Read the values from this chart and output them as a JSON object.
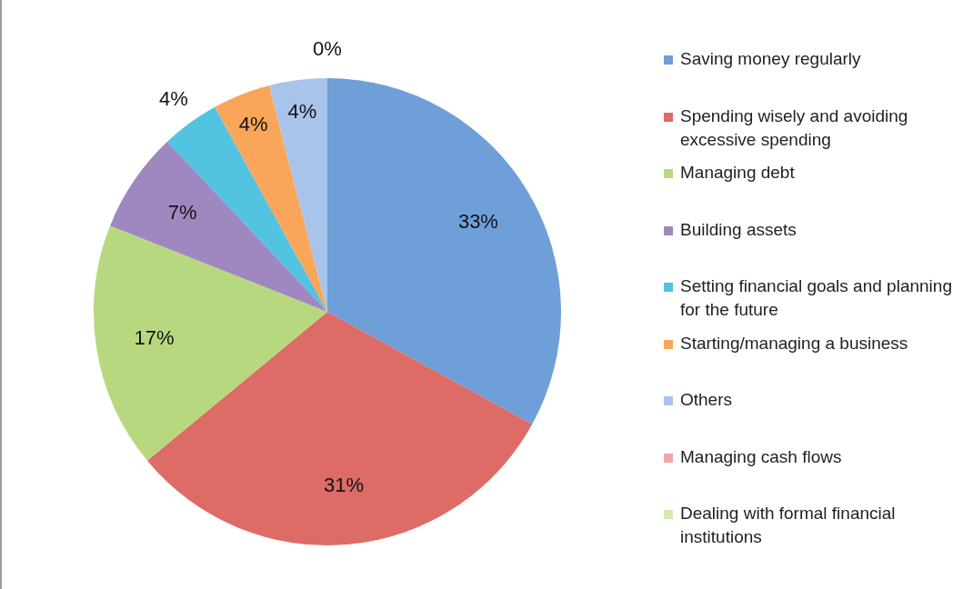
{
  "chart_data": {
    "type": "pie",
    "categories": [
      "Saving money regularly",
      "Spending wisely and avoiding excessive spending",
      "Managing debt",
      "Building assets",
      "Setting financial goals and planning for the future",
      "Starting/managing a business",
      "Others",
      "Managing cash flows",
      "Dealing with formal financial institutions"
    ],
    "values": [
      33,
      31,
      17,
      7,
      4,
      4,
      4,
      0,
      0
    ],
    "colors": [
      "#6f9fd8",
      "#dd6b66",
      "#b8d880",
      "#9f88c0",
      "#52c3e0",
      "#f9a65a",
      "#a9c4eb",
      "#f3a7a5",
      "#d5eab0"
    ],
    "value_labels": [
      "33%",
      "31%",
      "17%",
      "7%",
      "4%",
      "4%",
      "4%",
      "0%",
      null
    ],
    "legend": "right"
  }
}
